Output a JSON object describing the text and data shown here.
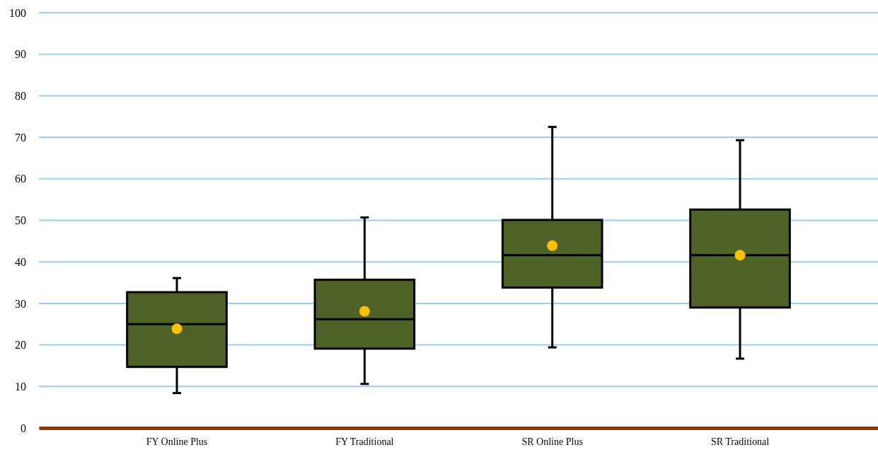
{
  "chart_data": {
    "type": "box",
    "categories": [
      "FY Online Plus",
      "FY Traditional",
      "SR Online Plus",
      "SR Traditional"
    ],
    "boxes": [
      {
        "low": 8.4,
        "q1": 14.7,
        "median": 25.0,
        "q3": 32.7,
        "high": 36.1,
        "mean": 23.9
      },
      {
        "low": 10.6,
        "q1": 19.1,
        "median": 26.2,
        "q3": 35.7,
        "high": 50.7,
        "mean": 28.1
      },
      {
        "low": 19.4,
        "q1": 33.8,
        "median": 41.6,
        "q3": 50.1,
        "high": 72.5,
        "mean": 43.9
      },
      {
        "low": 16.7,
        "q1": 29.0,
        "median": 41.6,
        "q3": 52.6,
        "high": 69.3,
        "mean": 41.6
      }
    ],
    "color": "#4f6228",
    "ylim": [
      0,
      100
    ],
    "yticks": [
      0,
      10,
      20,
      30,
      40,
      50,
      60,
      70,
      80,
      90,
      100
    ],
    "grid": "y"
  }
}
